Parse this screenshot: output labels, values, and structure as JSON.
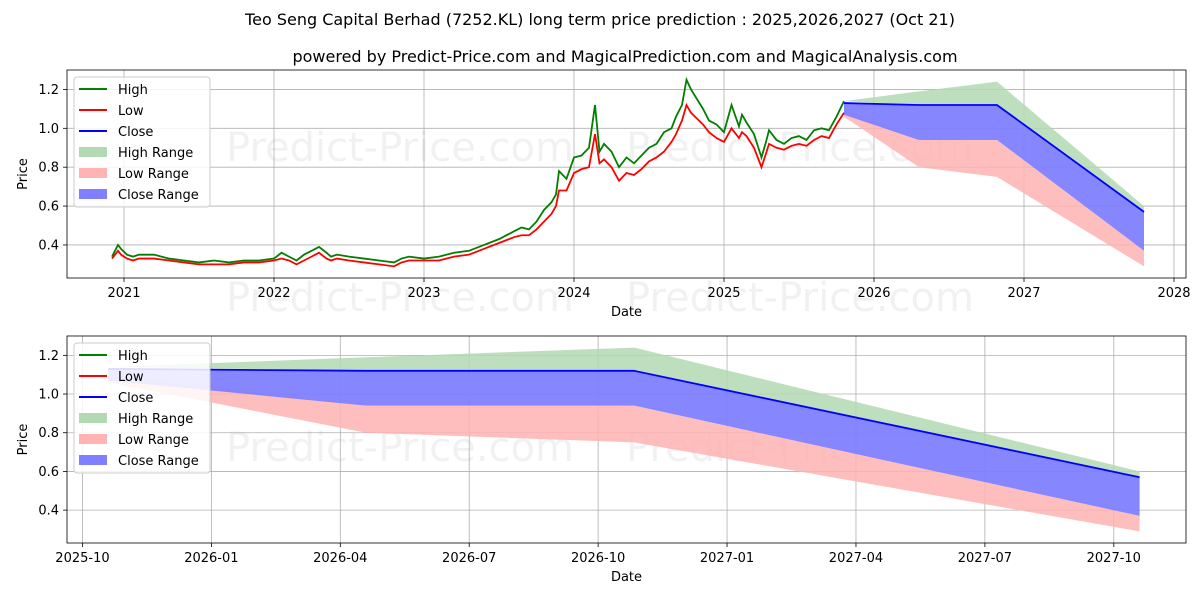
{
  "title": "Teo Seng Capital Berhad (7252.KL) long term price prediction : 2025,2026,2027 (Oct 21)",
  "subtitle": "powered by Predict-Price.com and MagicalPrediction.com and MagicalAnalysis.com",
  "watermark": "Predict-Price.com",
  "colors": {
    "high": "#008000",
    "low": "#ff0000",
    "close": "#0000ff",
    "high_range": "#b3d9b3",
    "low_range": "#ffb3b3",
    "close_range": "#7f7fff"
  },
  "legend": [
    "High",
    "Low",
    "Close",
    "High Range",
    "Low Range",
    "Close Range"
  ],
  "chart_data": [
    {
      "type": "line",
      "id": "long-term",
      "xlabel": "Date",
      "ylabel": "Price",
      "xlim": [
        2020.62,
        2028.08
      ],
      "ylim": [
        0.23,
        1.3
      ],
      "xticks": [
        2021,
        2022,
        2023,
        2024,
        2025,
        2026,
        2027,
        2028
      ],
      "xtick_labels": [
        "2021",
        "2022",
        "2023",
        "2024",
        "2025",
        "2026",
        "2027",
        "2028"
      ],
      "yticks": [
        0.4,
        0.6,
        0.8,
        1.0,
        1.2
      ],
      "ytick_labels": [
        "0.4",
        "0.6",
        "0.8",
        "1.0",
        "1.2"
      ],
      "grid": true,
      "legend_position": "top-left",
      "history": {
        "x": [
          2020.92,
          2020.96,
          2020.98,
          2021.02,
          2021.06,
          2021.1,
          2021.2,
          2021.3,
          2021.4,
          2021.5,
          2021.6,
          2021.7,
          2021.8,
          2021.9,
          2022.0,
          2022.05,
          2022.1,
          2022.15,
          2022.2,
          2022.25,
          2022.3,
          2022.35,
          2022.38,
          2022.42,
          2022.5,
          2022.6,
          2022.7,
          2022.8,
          2022.85,
          2022.9,
          2023.0,
          2023.1,
          2023.2,
          2023.3,
          2023.4,
          2023.5,
          2023.6,
          2023.65,
          2023.7,
          2023.75,
          2023.8,
          2023.85,
          2023.88,
          2023.9,
          2023.95,
          2024.0,
          2024.05,
          2024.1,
          2024.14,
          2024.17,
          2024.2,
          2024.25,
          2024.3,
          2024.35,
          2024.4,
          2024.45,
          2024.5,
          2024.55,
          2024.6,
          2024.65,
          2024.68,
          2024.72,
          2024.75,
          2024.78,
          2024.82,
          2024.86,
          2024.9,
          2024.95,
          2025.0,
          2025.05,
          2025.1,
          2025.12,
          2025.15,
          2025.2,
          2025.25,
          2025.28,
          2025.3,
          2025.35,
          2025.4,
          2025.45,
          2025.5,
          2025.55,
          2025.6,
          2025.65,
          2025.7,
          2025.75,
          2025.8
        ],
        "high": [
          0.34,
          0.4,
          0.38,
          0.35,
          0.34,
          0.35,
          0.35,
          0.33,
          0.32,
          0.31,
          0.32,
          0.31,
          0.32,
          0.32,
          0.33,
          0.36,
          0.34,
          0.32,
          0.35,
          0.37,
          0.39,
          0.36,
          0.34,
          0.35,
          0.34,
          0.33,
          0.32,
          0.31,
          0.33,
          0.34,
          0.33,
          0.34,
          0.36,
          0.37,
          0.4,
          0.43,
          0.47,
          0.49,
          0.48,
          0.52,
          0.58,
          0.62,
          0.66,
          0.78,
          0.74,
          0.85,
          0.86,
          0.9,
          1.12,
          0.88,
          0.92,
          0.88,
          0.8,
          0.85,
          0.82,
          0.86,
          0.9,
          0.92,
          0.98,
          1.0,
          1.06,
          1.12,
          1.25,
          1.2,
          1.15,
          1.1,
          1.04,
          1.02,
          0.98,
          1.12,
          1.01,
          1.07,
          1.03,
          0.97,
          0.85,
          0.93,
          0.99,
          0.94,
          0.92,
          0.95,
          0.96,
          0.94,
          0.99,
          1.0,
          0.99,
          1.06,
          1.14
        ],
        "low": [
          0.33,
          0.37,
          0.35,
          0.33,
          0.32,
          0.33,
          0.33,
          0.32,
          0.31,
          0.3,
          0.3,
          0.3,
          0.31,
          0.31,
          0.32,
          0.33,
          0.32,
          0.3,
          0.32,
          0.34,
          0.36,
          0.33,
          0.32,
          0.33,
          0.32,
          0.31,
          0.3,
          0.29,
          0.31,
          0.32,
          0.32,
          0.32,
          0.34,
          0.35,
          0.38,
          0.41,
          0.44,
          0.45,
          0.45,
          0.48,
          0.52,
          0.56,
          0.6,
          0.68,
          0.68,
          0.77,
          0.79,
          0.8,
          0.97,
          0.82,
          0.84,
          0.8,
          0.73,
          0.77,
          0.76,
          0.79,
          0.83,
          0.85,
          0.88,
          0.93,
          0.97,
          1.04,
          1.12,
          1.08,
          1.05,
          1.02,
          0.98,
          0.95,
          0.93,
          1.0,
          0.95,
          0.98,
          0.96,
          0.9,
          0.8,
          0.87,
          0.92,
          0.9,
          0.89,
          0.91,
          0.92,
          0.91,
          0.94,
          0.96,
          0.95,
          1.02,
          1.08
        ]
      },
      "forecast": {
        "x": [
          2025.8,
          2026.3,
          2026.82,
          2027.8
        ],
        "close": [
          1.13,
          1.12,
          1.12,
          0.57
        ],
        "high_range": [
          [
            1.14,
            1.14
          ],
          [
            1.19,
            1.12
          ],
          [
            1.24,
            1.12
          ],
          [
            0.6,
            0.57
          ]
        ],
        "low_range": [
          [
            1.1,
            1.06
          ],
          [
            0.94,
            0.8
          ],
          [
            0.94,
            0.75
          ],
          [
            0.37,
            0.29
          ]
        ],
        "close_range": [
          [
            1.13,
            1.07
          ],
          [
            1.12,
            0.94
          ],
          [
            1.12,
            0.94
          ],
          [
            0.57,
            0.37
          ]
        ]
      }
    },
    {
      "type": "line",
      "id": "forecast-zoom",
      "xlabel": "Date",
      "ylabel": "Price",
      "xlim": [
        2025.72,
        2027.89
      ],
      "ylim": [
        0.23,
        1.3
      ],
      "xticks": [
        2025.75,
        2026.0,
        2026.25,
        2026.5,
        2026.75,
        2027.0,
        2027.25,
        2027.5,
        2027.75
      ],
      "xtick_labels": [
        "2025-10",
        "2026-01",
        "2026-04",
        "2026-07",
        "2026-10",
        "2027-01",
        "2027-04",
        "2027-07",
        "2027-10"
      ],
      "yticks": [
        0.4,
        0.6,
        0.8,
        1.0,
        1.2
      ],
      "ytick_labels": [
        "0.4",
        "0.6",
        "0.8",
        "1.0",
        "1.2"
      ],
      "grid": true,
      "legend_position": "top-left",
      "forecast": {
        "x": [
          2025.8,
          2026.3,
          2026.82,
          2027.8
        ],
        "close": [
          1.13,
          1.12,
          1.12,
          0.57
        ],
        "high_range": [
          [
            1.14,
            1.14
          ],
          [
            1.19,
            1.12
          ],
          [
            1.24,
            1.12
          ],
          [
            0.6,
            0.57
          ]
        ],
        "low_range": [
          [
            1.1,
            1.06
          ],
          [
            0.94,
            0.8
          ],
          [
            0.94,
            0.75
          ],
          [
            0.37,
            0.29
          ]
        ],
        "close_range": [
          [
            1.13,
            1.07
          ],
          [
            1.12,
            0.94
          ],
          [
            1.12,
            0.94
          ],
          [
            0.57,
            0.37
          ]
        ]
      }
    }
  ]
}
